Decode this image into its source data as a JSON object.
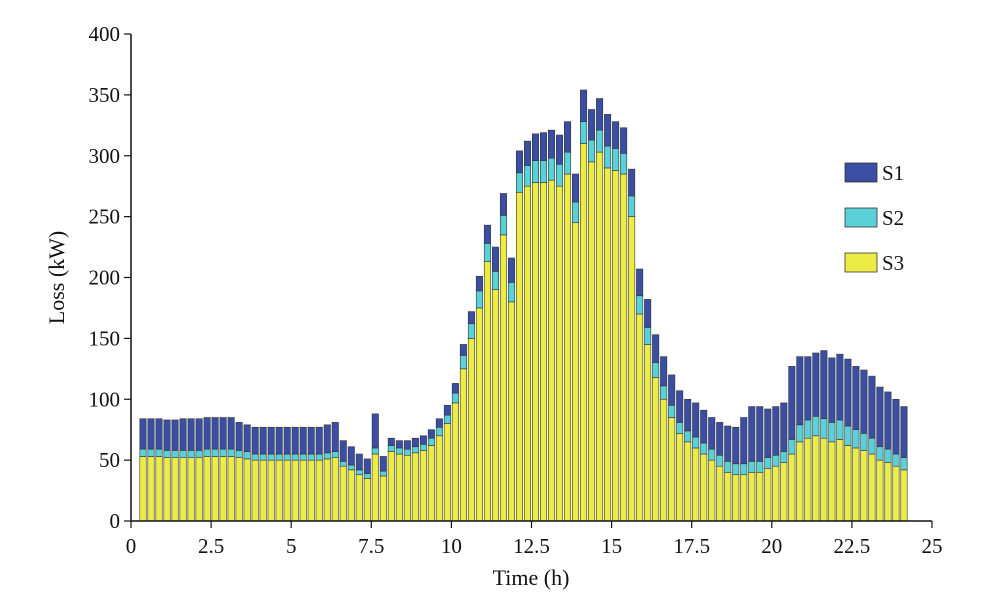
{
  "chart_data": {
    "type": "bar",
    "stacked": true,
    "title": "",
    "xlabel": "Time (h)",
    "ylabel": "Loss (kW)",
    "xlim": [
      0,
      25
    ],
    "ylim": [
      0,
      400
    ],
    "xticks": [
      "0",
      "2.5",
      "5",
      "7.5",
      "10",
      "12.5",
      "15",
      "17.5",
      "20",
      "22.5",
      "25"
    ],
    "yticks": [
      "0",
      "50",
      "100",
      "150",
      "200",
      "250",
      "300",
      "350",
      "400"
    ],
    "grid": false,
    "legend_position": "right",
    "x": [
      0.25,
      0.5,
      0.75,
      1.0,
      1.25,
      1.5,
      1.75,
      2.0,
      2.25,
      2.5,
      2.75,
      3.0,
      3.25,
      3.5,
      3.75,
      4.0,
      4.25,
      4.5,
      4.75,
      5.0,
      5.25,
      5.5,
      5.75,
      6.0,
      6.25,
      6.5,
      6.75,
      7.0,
      7.25,
      7.5,
      7.75,
      8.0,
      8.25,
      8.5,
      8.75,
      9.0,
      9.25,
      9.5,
      9.75,
      10.0,
      10.25,
      10.5,
      10.75,
      11.0,
      11.25,
      11.5,
      11.75,
      12.0,
      12.25,
      12.5,
      12.75,
      13.0,
      13.25,
      13.5,
      13.75,
      14.0,
      14.25,
      14.5,
      14.75,
      15.0,
      15.25,
      15.5,
      15.75,
      16.0,
      16.25,
      16.5,
      16.75,
      17.0,
      17.25,
      17.5,
      17.75,
      18.0,
      18.25,
      18.5,
      18.75,
      19.0,
      19.25,
      19.5,
      19.75,
      20.0,
      20.25,
      20.5,
      20.75,
      21.0,
      21.25,
      21.5,
      21.75,
      22.0,
      22.25,
      22.5,
      22.75,
      23.0,
      23.25,
      23.5,
      23.75,
      24.0
    ],
    "series": [
      {
        "name": "S3",
        "color": "#ecec45",
        "values": [
          53,
          53,
          53,
          52,
          52,
          52,
          52,
          52,
          53,
          53,
          53,
          53,
          52,
          51,
          50,
          50,
          50,
          50,
          50,
          50,
          50,
          50,
          50,
          51,
          52,
          45,
          42,
          38,
          35,
          55,
          37,
          57,
          55,
          54,
          56,
          58,
          62,
          70,
          80,
          97,
          125,
          150,
          175,
          213,
          190,
          235,
          180,
          270,
          275,
          278,
          278,
          280,
          275,
          285,
          245,
          310,
          295,
          303,
          290,
          288,
          285,
          250,
          170,
          145,
          118,
          100,
          85,
          72,
          65,
          60,
          55,
          50,
          45,
          40,
          38,
          38,
          40,
          40,
          43,
          45,
          48,
          55,
          65,
          68,
          70,
          68,
          65,
          67,
          62,
          60,
          58,
          55,
          50,
          48,
          45,
          42
        ]
      },
      {
        "name": "S2",
        "color": "#5ad1d6",
        "values": [
          6,
          6,
          6,
          6,
          6,
          6,
          6,
          6,
          6,
          6,
          6,
          6,
          6,
          6,
          5,
          5,
          5,
          5,
          5,
          5,
          5,
          5,
          5,
          5,
          5,
          4,
          4,
          4,
          4,
          5,
          4,
          5,
          5,
          5,
          5,
          5,
          6,
          7,
          7,
          8,
          11,
          12,
          14,
          15,
          15,
          16,
          16,
          16,
          17,
          18,
          18,
          18,
          18,
          18,
          17,
          18,
          18,
          18,
          18,
          18,
          17,
          17,
          15,
          14,
          12,
          11,
          10,
          9,
          9,
          9,
          9,
          9,
          9,
          9,
          9,
          9,
          9,
          9,
          9,
          9,
          9,
          12,
          14,
          15,
          16,
          16,
          16,
          16,
          16,
          15,
          14,
          13,
          11,
          11,
          10,
          10
        ]
      },
      {
        "name": "S1",
        "color": "#3a4ea3",
        "values": [
          25,
          25,
          25,
          25,
          25,
          26,
          26,
          26,
          26,
          26,
          26,
          26,
          23,
          22,
          22,
          22,
          22,
          22,
          22,
          22,
          22,
          22,
          22,
          23,
          24,
          17,
          15,
          13,
          12,
          28,
          12,
          6,
          6,
          7,
          7,
          7,
          7,
          7,
          8,
          8,
          9,
          10,
          12,
          15,
          20,
          18,
          20,
          18,
          20,
          22,
          23,
          23,
          24,
          25,
          23,
          26,
          25,
          26,
          26,
          22,
          21,
          22,
          22,
          23,
          23,
          24,
          25,
          26,
          26,
          28,
          27,
          26,
          27,
          29,
          30,
          38,
          45,
          45,
          40,
          40,
          40,
          60,
          56,
          52,
          52,
          56,
          53,
          54,
          55,
          52,
          52,
          51,
          49,
          47,
          45,
          42
        ]
      }
    ]
  },
  "legend": {
    "items": [
      {
        "label": "S1",
        "color": "#3a4ea3"
      },
      {
        "label": "S2",
        "color": "#5ad1d6"
      },
      {
        "label": "S3",
        "color": "#ecec45"
      }
    ]
  }
}
